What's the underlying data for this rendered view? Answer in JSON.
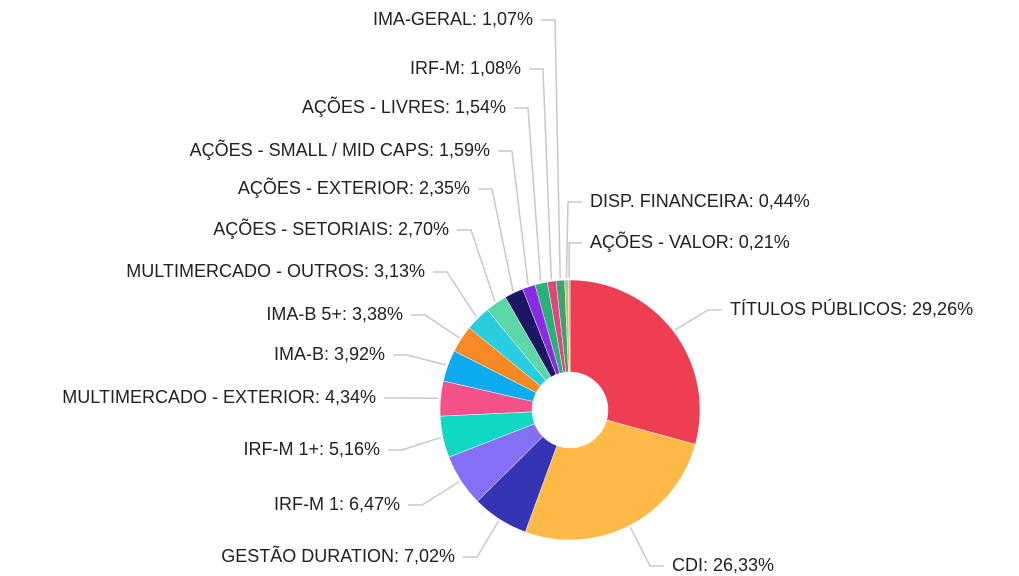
{
  "chart_data": {
    "type": "donut",
    "value_labels": [
      "TÍTULOS PÚBLICOS: 29,26%",
      "CDI: 26,33%",
      "GESTÃO DURATION: 7,02%",
      "IRF-M 1: 6,47%",
      "IRF-M 1+: 5,16%",
      "MULTIMERCADO - EXTERIOR: 4,34%",
      "IMA-B: 3,92%",
      "IMA-B 5+: 3,38%",
      "MULTIMERCADO - OUTROS: 3,13%",
      "AÇÕES - SETORIAIS: 2,70%",
      "AÇÕES - EXTERIOR: 2,35%",
      "AÇÕES - SMALL / MID CAPS: 1,59%",
      "AÇÕES - LIVRES: 1,54%",
      "IRF-M: 1,08%",
      "IMA-GERAL: 1,07%",
      "DISP. FINANCEIRA: 0,44%",
      "AÇÕES - VALOR: 0,21%"
    ],
    "values": [
      29.26,
      26.33,
      7.02,
      6.47,
      5.16,
      4.34,
      3.92,
      3.38,
      3.13,
      2.7,
      2.35,
      1.59,
      1.54,
      1.08,
      1.07,
      0.44,
      0.21
    ],
    "colors": [
      "#ef3e52",
      "#ffb947",
      "#3535b3",
      "#8470f5",
      "#12d8c3",
      "#f2518a",
      "#0eaaf0",
      "#f78a25",
      "#28cde0",
      "#5dd6a8",
      "#1d1663",
      "#8a2be2",
      "#29b07a",
      "#e0457b",
      "#40a070",
      "#c4c455",
      "#5bc0de"
    ]
  }
}
